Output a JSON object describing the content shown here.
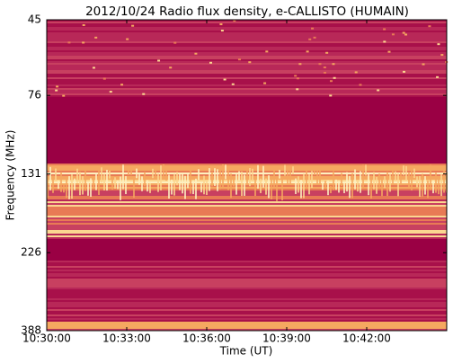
{
  "chart_data": {
    "type": "spectrogram",
    "title": "2012/10/24  Radio flux density, e-CALLISTO (HUMAIN)",
    "x_label": "Time (UT)",
    "y_label": "Frequency (MHz)",
    "xlim": [
      "10:30:00",
      "10:45:00"
    ],
    "xticks": [
      "10:30:00",
      "10:33:00",
      "10:36:00",
      "10:39:00",
      "10:42:00"
    ],
    "ylim": [
      45,
      388
    ],
    "yticks": [
      45,
      76,
      131,
      226,
      388
    ],
    "yscale": "log",
    "y_inverted": true
  }
}
